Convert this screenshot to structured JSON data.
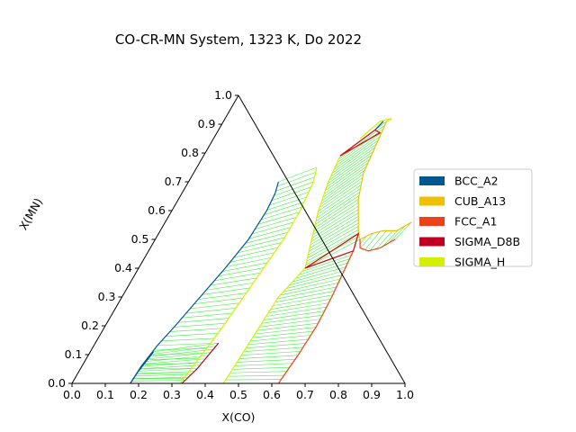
{
  "chart_data": {
    "type": "ternary-phase-diagram",
    "title": "CO-CR-MN System, 1323 K, Do 2022",
    "xlabel": "X(CO)",
    "ylabel": "X(MN)",
    "x_ticks": [
      "0.0",
      "0.1",
      "0.2",
      "0.3",
      "0.4",
      "0.5",
      "0.6",
      "0.7",
      "0.8",
      "0.9",
      "1.0"
    ],
    "y_ticks": [
      "0.0",
      "0.1",
      "0.2",
      "0.3",
      "0.4",
      "0.5",
      "0.6",
      "0.7",
      "0.8",
      "0.9",
      "1.0"
    ],
    "xlim": [
      0,
      1
    ],
    "ylim": [
      0,
      1
    ],
    "legend_position": "right",
    "legend": [
      {
        "label": "BCC_A2",
        "color": "#00568f"
      },
      {
        "label": "CUB_A13",
        "color": "#f0c000"
      },
      {
        "label": "FCC_A1",
        "color": "#f04018"
      },
      {
        "label": "SIGMA_D8B",
        "color": "#c00020"
      },
      {
        "label": "SIGMA_H",
        "color": "#d4f000"
      }
    ],
    "tie_line_color": "#44ee44",
    "regions": [
      {
        "name": "BCC_A2 + SIGMA_H",
        "boundary_a_phase": "BCC_A2",
        "boundary_a": [
          [
            0.175,
            0.0
          ],
          [
            0.178,
            0.06
          ],
          [
            0.19,
            0.13
          ],
          [
            0.21,
            0.2
          ],
          [
            0.235,
            0.3
          ],
          [
            0.26,
            0.4
          ],
          [
            0.28,
            0.5
          ],
          [
            0.285,
            0.6
          ],
          [
            0.28,
            0.66
          ],
          [
            0.27,
            0.7
          ]
        ],
        "boundary_b_phase": "SIGMA_H",
        "boundary_b": [
          [
            0.325,
            0.0
          ],
          [
            0.333,
            0.06
          ],
          [
            0.345,
            0.13
          ],
          [
            0.355,
            0.2
          ],
          [
            0.365,
            0.3
          ],
          [
            0.375,
            0.4
          ],
          [
            0.385,
            0.5
          ],
          [
            0.385,
            0.6
          ],
          [
            0.375,
            0.7
          ],
          [
            0.36,
            0.75
          ]
        ],
        "tie_lines": 44
      },
      {
        "name": "BCC_A2 + SIGMA_D8B",
        "boundary_a_phase": "BCC_A2",
        "boundary_a": [
          [
            0.175,
            0.0
          ],
          [
            0.178,
            0.04
          ],
          [
            0.19,
            0.11
          ]
        ],
        "boundary_b_phase": "SIGMA_D8B",
        "boundary_b": [
          [
            0.33,
            0.0
          ],
          [
            0.35,
            0.05
          ],
          [
            0.37,
            0.14
          ]
        ],
        "tie_lines": 14
      },
      {
        "name": "SIGMA_H + FCC_A1 (lower)",
        "boundary_a_phase": "SIGMA_H",
        "boundary_a": [
          [
            0.455,
            0.0
          ],
          [
            0.46,
            0.1
          ],
          [
            0.465,
            0.2
          ],
          [
            0.47,
            0.3
          ],
          [
            0.5,
            0.4
          ]
        ],
        "boundary_b_phase": "FCC_A1",
        "boundary_b": [
          [
            0.62,
            0.0
          ],
          [
            0.63,
            0.1
          ],
          [
            0.635,
            0.2
          ],
          [
            0.63,
            0.3
          ],
          [
            0.615,
            0.46
          ]
        ],
        "tie_lines": 34
      },
      {
        "name": "SIGMA_H + CUB_A13 (upper)",
        "boundary_a_phase": "SIGMA_H",
        "boundary_a": [
          [
            0.41,
            0.79
          ],
          [
            0.42,
            0.7
          ],
          [
            0.44,
            0.6
          ],
          [
            0.47,
            0.5
          ],
          [
            0.5,
            0.4
          ]
        ],
        "boundary_b_phase": "CUB_A13",
        "boundary_b": [
          [
            0.49,
            0.91
          ],
          [
            0.5,
            0.82
          ],
          [
            0.51,
            0.73
          ],
          [
            0.54,
            0.64
          ],
          [
            0.6,
            0.52
          ],
          [
            0.615,
            0.5
          ]
        ],
        "tie_lines": 34
      },
      {
        "name": "FCC_A1 + CUB_A13 (right)",
        "boundary_a_phase": "FCC_A1",
        "boundary_a": [
          [
            0.615,
            0.5
          ],
          [
            0.63,
            0.47
          ],
          [
            0.66,
            0.46
          ],
          [
            0.69,
            0.47
          ],
          [
            0.72,
            0.5
          ]
        ],
        "boundary_b_phase": "CUB_A13",
        "boundary_b": [
          [
            0.615,
            0.5
          ],
          [
            0.64,
            0.52
          ],
          [
            0.67,
            0.53
          ],
          [
            0.71,
            0.53
          ],
          [
            0.74,
            0.56
          ]
        ],
        "tie_lines": 9
      }
    ],
    "tie_triangles": [
      {
        "phases": [
          "SIGMA_H",
          "FCC_A1",
          "CUB_A13"
        ],
        "color": "#cc1111",
        "vertices": [
          [
            0.5,
            0.4
          ],
          [
            0.615,
            0.46
          ],
          [
            0.6,
            0.52
          ]
        ]
      },
      {
        "phases": [
          "SIGMA_D8B",
          "SIGMA_H",
          "CUB_A13"
        ],
        "color": "#cc1111",
        "vertices": [
          [
            0.41,
            0.79
          ],
          [
            0.49,
            0.87
          ],
          [
            0.47,
            0.88
          ]
        ]
      }
    ],
    "boundary_curves": [
      {
        "phase": "SIGMA_H",
        "points": [
          [
            0.44,
            0.85
          ],
          [
            0.47,
            0.91
          ],
          [
            0.5,
            0.92
          ],
          [
            0.49,
            0.91
          ]
        ]
      },
      {
        "phase": "BCC_A2",
        "points": [
          [
            0.47,
            0.88
          ],
          [
            0.48,
            0.91
          ]
        ]
      }
    ]
  }
}
